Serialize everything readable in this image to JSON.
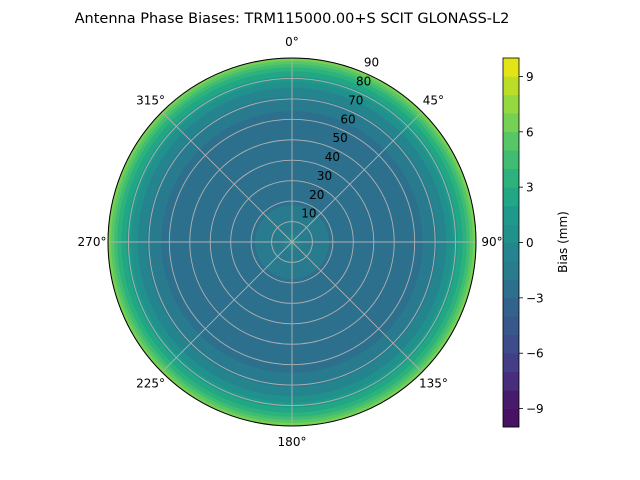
{
  "chart_data": {
    "type": "polar-contour",
    "title": "Antenna Phase Biases: TRM115000.00+S  SCIT GLONASS-L2",
    "colormap": "viridis",
    "angle_ticks": [
      "0°",
      "45°",
      "90°",
      "135°",
      "180°",
      "225°",
      "270°",
      "315°"
    ],
    "angle_values": [
      0,
      45,
      90,
      135,
      180,
      225,
      270,
      315
    ],
    "theta_direction": "clockwise",
    "theta_zero": "north",
    "radial_ticks": [
      "10",
      "20",
      "30",
      "40",
      "50",
      "60",
      "70",
      "80",
      "90"
    ],
    "radial_values": [
      10,
      20,
      30,
      40,
      50,
      60,
      70,
      80,
      90
    ],
    "rlim": [
      0,
      90
    ],
    "grid": true,
    "profile": {
      "zenith": [
        0,
        10,
        20,
        30,
        40,
        50,
        60,
        65,
        70,
        75,
        80,
        83,
        86,
        88,
        90
      ],
      "bias": [
        -0.8,
        -1.3,
        -2.2,
        -2.8,
        -3.0,
        -2.9,
        -2.4,
        -1.9,
        -1.2,
        -0.2,
        1.5,
        2.8,
        4.3,
        5.6,
        7.0
      ]
    },
    "colorbar": {
      "label": "Bias (mm)",
      "range": [
        -10,
        10
      ],
      "levels": 20,
      "ticks": [
        -9,
        -6,
        -3,
        0,
        3,
        6,
        9
      ],
      "tick_labels": [
        "−9",
        "−6",
        "−3",
        "0",
        "3",
        "6",
        "9"
      ]
    }
  }
}
